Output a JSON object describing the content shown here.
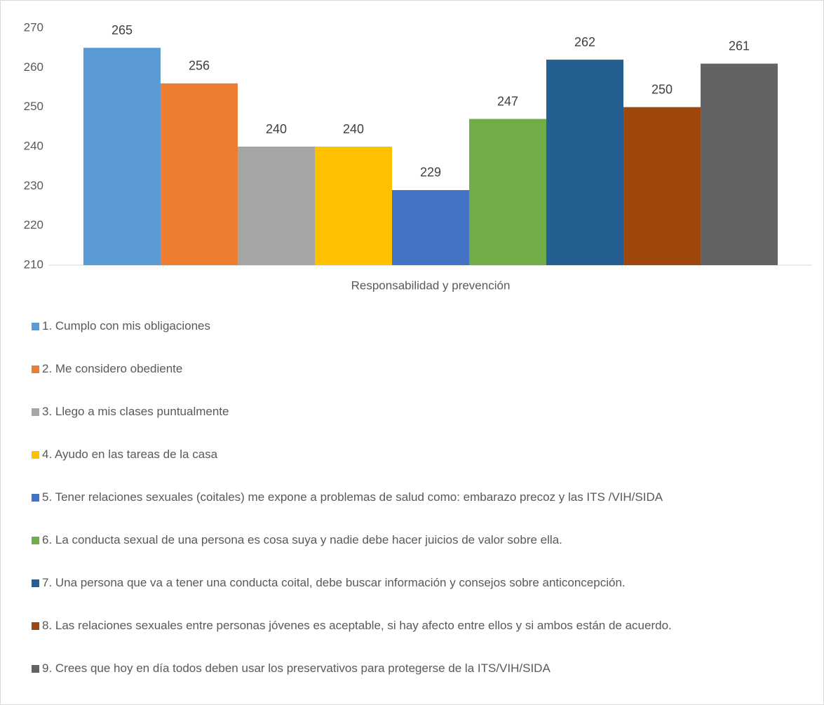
{
  "chart_data": {
    "type": "bar",
    "categories": [
      "Responsabilidad y prevención"
    ],
    "series": [
      {
        "name": "1. Cumplo con mis obligaciones",
        "color": "#5b9bd5",
        "values": [
          265
        ]
      },
      {
        "name": "2. Me considero obediente",
        "color": "#ed7d31",
        "values": [
          256
        ]
      },
      {
        "name": "3. Llego a mis  clases puntualmente",
        "color": "#a5a5a5",
        "values": [
          240
        ]
      },
      {
        "name": "4. Ayudo  en las tareas de la casa",
        "color": "#ffc000",
        "values": [
          240
        ]
      },
      {
        "name": "5. Tener relaciones sexuales (coitales) me expone a problemas de salud como: embarazo precoz y las ITS /VIH/SIDA",
        "color": "#4472c4",
        "values": [
          229
        ]
      },
      {
        "name": "6. La conducta sexual  de una persona  es cosa suya  y nadie  debe hacer juicios de valor sobre ella.",
        "color": "#70ad47",
        "values": [
          247
        ]
      },
      {
        "name": "7. Una persona que va a tener una  conducta coital, debe buscar información y consejos sobre anticoncepción.",
        "color": "#255e91",
        "values": [
          262
        ]
      },
      {
        "name": "8. Las relaciones sexuales entre personas jóvenes es aceptable, si hay afecto entre ellos y si ambos están de acuerdo.",
        "color": "#9e480e",
        "values": [
          250
        ]
      },
      {
        "name": "9. Crees que hoy en día todos deben usar los preservativos para protegerse de la ITS/VIH/SIDA",
        "color": "#636363",
        "values": [
          261
        ]
      }
    ],
    "ylim": [
      210,
      270
    ],
    "yticks": [
      210,
      220,
      230,
      240,
      250,
      260,
      270
    ],
    "grid": false,
    "legend": "bottom"
  }
}
